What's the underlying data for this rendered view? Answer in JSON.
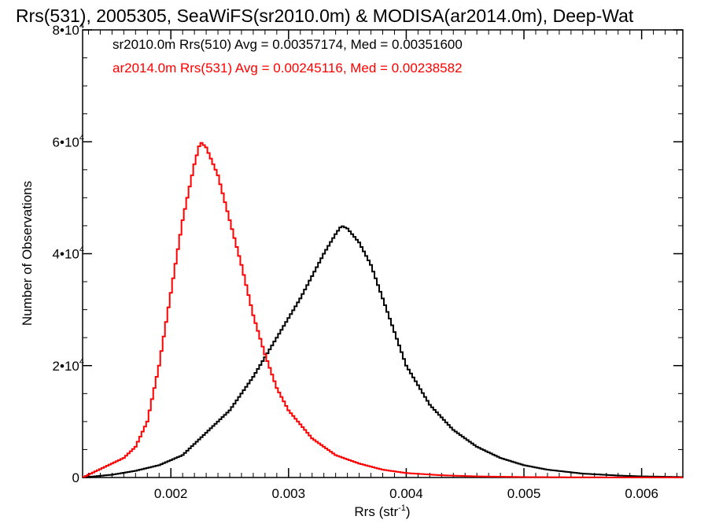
{
  "chart_data": {
    "type": "line",
    "title": "Rrs(531), 2005305, SeaWiFS(sr2010.0m) & MODISA(ar2014.0m), Deep-Wat",
    "xlabel": "Rrs (str",
    "xlabel_sup": "-1",
    "xlabel_tail": ")",
    "ylabel": "Number of Observations",
    "xlim": [
      0.00125,
      0.00635
    ],
    "ylim": [
      0,
      80000
    ],
    "x_ticks": [
      {
        "value": 0.002,
        "label": "0.002"
      },
      {
        "value": 0.003,
        "label": "0.003"
      },
      {
        "value": 0.004,
        "label": "0.004"
      },
      {
        "value": 0.005,
        "label": "0.005"
      },
      {
        "value": 0.006,
        "label": "0.006"
      }
    ],
    "y_ticks": [
      {
        "value": 0,
        "base": "0",
        "exp": ""
      },
      {
        "value": 20000,
        "base": "2•10",
        "exp": "4"
      },
      {
        "value": 40000,
        "base": "4•10",
        "exp": "4"
      },
      {
        "value": 60000,
        "base": "6•10",
        "exp": "4"
      },
      {
        "value": 80000,
        "base": "8•10",
        "exp": "4"
      }
    ],
    "grid": false,
    "legend_placement": "top-left",
    "series": [
      {
        "name": "sr2010.0m Rrs(510) Avg = 0.00357174, Med = 0.00351600",
        "color": "#000000",
        "points": [
          [
            0.00125,
            0
          ],
          [
            0.0015,
            500
          ],
          [
            0.0017,
            1200
          ],
          [
            0.0019,
            2200
          ],
          [
            0.0021,
            4000
          ],
          [
            0.0023,
            8000
          ],
          [
            0.0025,
            12000
          ],
          [
            0.0027,
            18000
          ],
          [
            0.0029,
            25000
          ],
          [
            0.003,
            28500
          ],
          [
            0.0031,
            32000
          ],
          [
            0.0032,
            36000
          ],
          [
            0.0033,
            40000
          ],
          [
            0.0034,
            43500
          ],
          [
            0.00345,
            45000
          ],
          [
            0.0035,
            44500
          ],
          [
            0.0036,
            42000
          ],
          [
            0.0037,
            38000
          ],
          [
            0.0038,
            32000
          ],
          [
            0.0039,
            26000
          ],
          [
            0.004,
            20000
          ],
          [
            0.0042,
            13000
          ],
          [
            0.0044,
            8500
          ],
          [
            0.0046,
            5500
          ],
          [
            0.0048,
            3500
          ],
          [
            0.005,
            2200
          ],
          [
            0.0052,
            1400
          ],
          [
            0.0055,
            700
          ],
          [
            0.0058,
            350
          ],
          [
            0.006,
            200
          ],
          [
            0.00635,
            80
          ]
        ]
      },
      {
        "name": "ar2014.0m Rrs(531) Avg = 0.00245116, Med = 0.00238582",
        "color": "#ff0000",
        "points": [
          [
            0.00125,
            0
          ],
          [
            0.0014,
            1500
          ],
          [
            0.0016,
            3500
          ],
          [
            0.0017,
            5500
          ],
          [
            0.0018,
            10000
          ],
          [
            0.0019,
            20000
          ],
          [
            0.002,
            33000
          ],
          [
            0.0021,
            46000
          ],
          [
            0.0022,
            56000
          ],
          [
            0.00225,
            60000
          ],
          [
            0.0023,
            59000
          ],
          [
            0.0024,
            54000
          ],
          [
            0.0025,
            46000
          ],
          [
            0.0026,
            38000
          ],
          [
            0.0027,
            29000
          ],
          [
            0.0028,
            22000
          ],
          [
            0.0029,
            16000
          ],
          [
            0.003,
            12000
          ],
          [
            0.0032,
            7000
          ],
          [
            0.0034,
            4000
          ],
          [
            0.0036,
            2500
          ],
          [
            0.0038,
            1400
          ],
          [
            0.004,
            800
          ],
          [
            0.0043,
            400
          ],
          [
            0.0046,
            200
          ],
          [
            0.005,
            80
          ],
          [
            0.0055,
            30
          ],
          [
            0.00635,
            10
          ]
        ]
      }
    ]
  }
}
